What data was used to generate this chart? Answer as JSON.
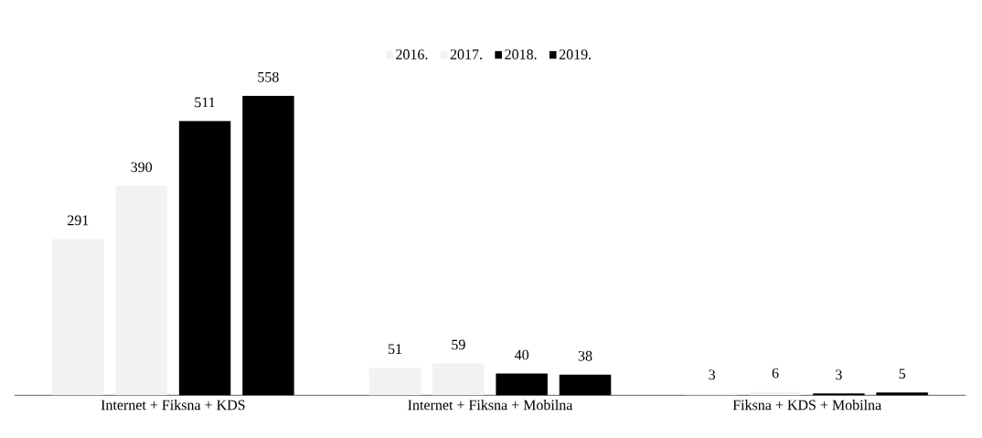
{
  "chart_data": {
    "type": "bar",
    "categories": [
      "Internet + Fiksna + KDS",
      "Internet + Fiksna + Mobilna",
      "Fiksna + KDS + Mobilna"
    ],
    "series": [
      {
        "name": "2016.",
        "color": "#f2f2f2",
        "values": [
          291,
          51,
          3
        ]
      },
      {
        "name": "2017.",
        "color": "#f2f2f2",
        "values": [
          390,
          59,
          6
        ]
      },
      {
        "name": "2018.",
        "color": "#000000",
        "values": [
          511,
          40,
          3
        ]
      },
      {
        "name": "2019.",
        "color": "#000000",
        "values": [
          558,
          38,
          5
        ]
      }
    ],
    "data_labels": true,
    "legend": "top"
  }
}
